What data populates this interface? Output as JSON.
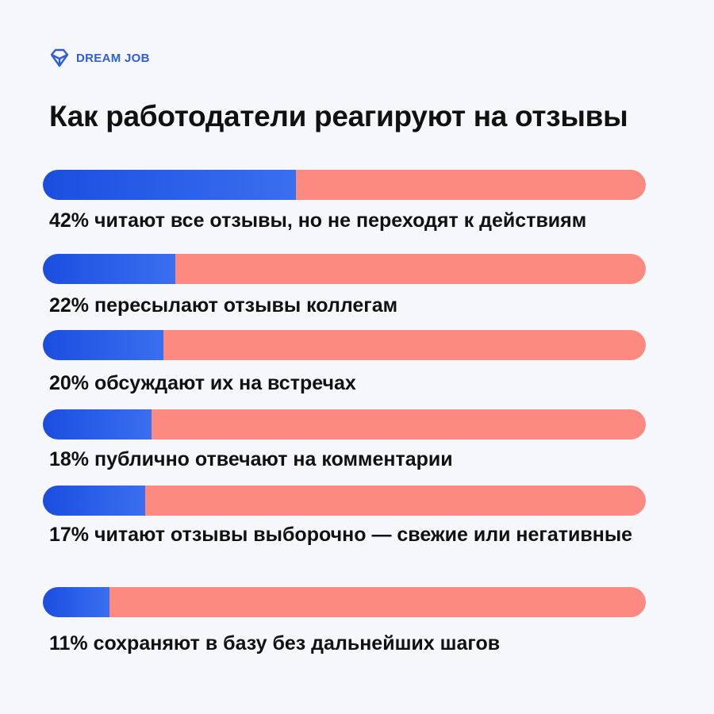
{
  "brand": {
    "name": "DREAM JOB",
    "color": "#2c5fd6",
    "icon": "diamond-logo-icon"
  },
  "colors": {
    "fill_start": "#1a4ee0",
    "fill_end": "#3a6ff0",
    "track": "#fd8a80"
  },
  "chart_data": {
    "type": "bar",
    "orientation": "horizontal-progress",
    "title": "Как работодатели реагируют на отзывы",
    "xlim": [
      0,
      100
    ],
    "categories": [
      "42% читают все отзывы, но не переходят к действиям",
      "22% пересылают отзывы коллегам",
      "20% обсуждают их на встречах",
      "18% публично отвечают на комментарии",
      "17% читают отзывы выборочно — свежие или негативные",
      "11% сохраняют в базу без дальнейших шагов"
    ],
    "values": [
      42,
      22,
      20,
      18,
      17,
      11
    ]
  }
}
